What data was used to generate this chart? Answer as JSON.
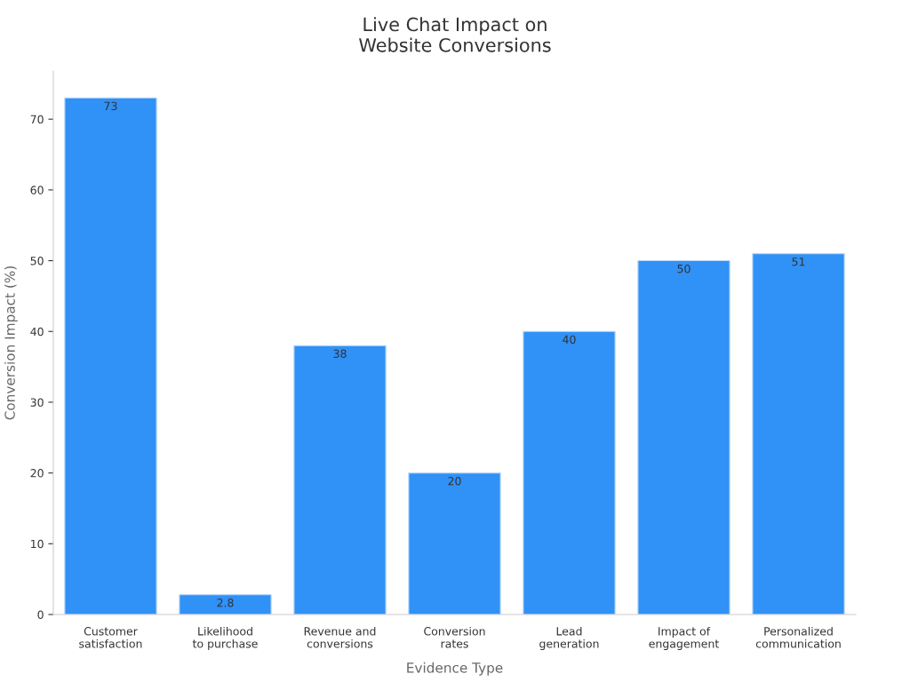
{
  "chart_data": {
    "type": "bar",
    "title": "Live Chat Impact on\nWebsite Conversions",
    "xlabel": "Evidence Type",
    "ylabel": "Conversion Impact (%)",
    "categories": [
      "Customer\nsatisfaction",
      "Likelihood\nto purchase",
      "Revenue and\nconversions",
      "Conversion\nrates",
      "Lead\ngeneration",
      "Impact of\nengagement",
      "Personalized\ncommunication"
    ],
    "values": [
      73,
      2.8,
      38,
      20,
      40,
      50,
      51
    ],
    "color": "#3091f7",
    "ylim": [
      0,
      76.8
    ],
    "yticks": [
      0,
      10,
      20,
      30,
      40,
      50,
      60,
      70
    ],
    "grid": false,
    "data_labels": true
  }
}
